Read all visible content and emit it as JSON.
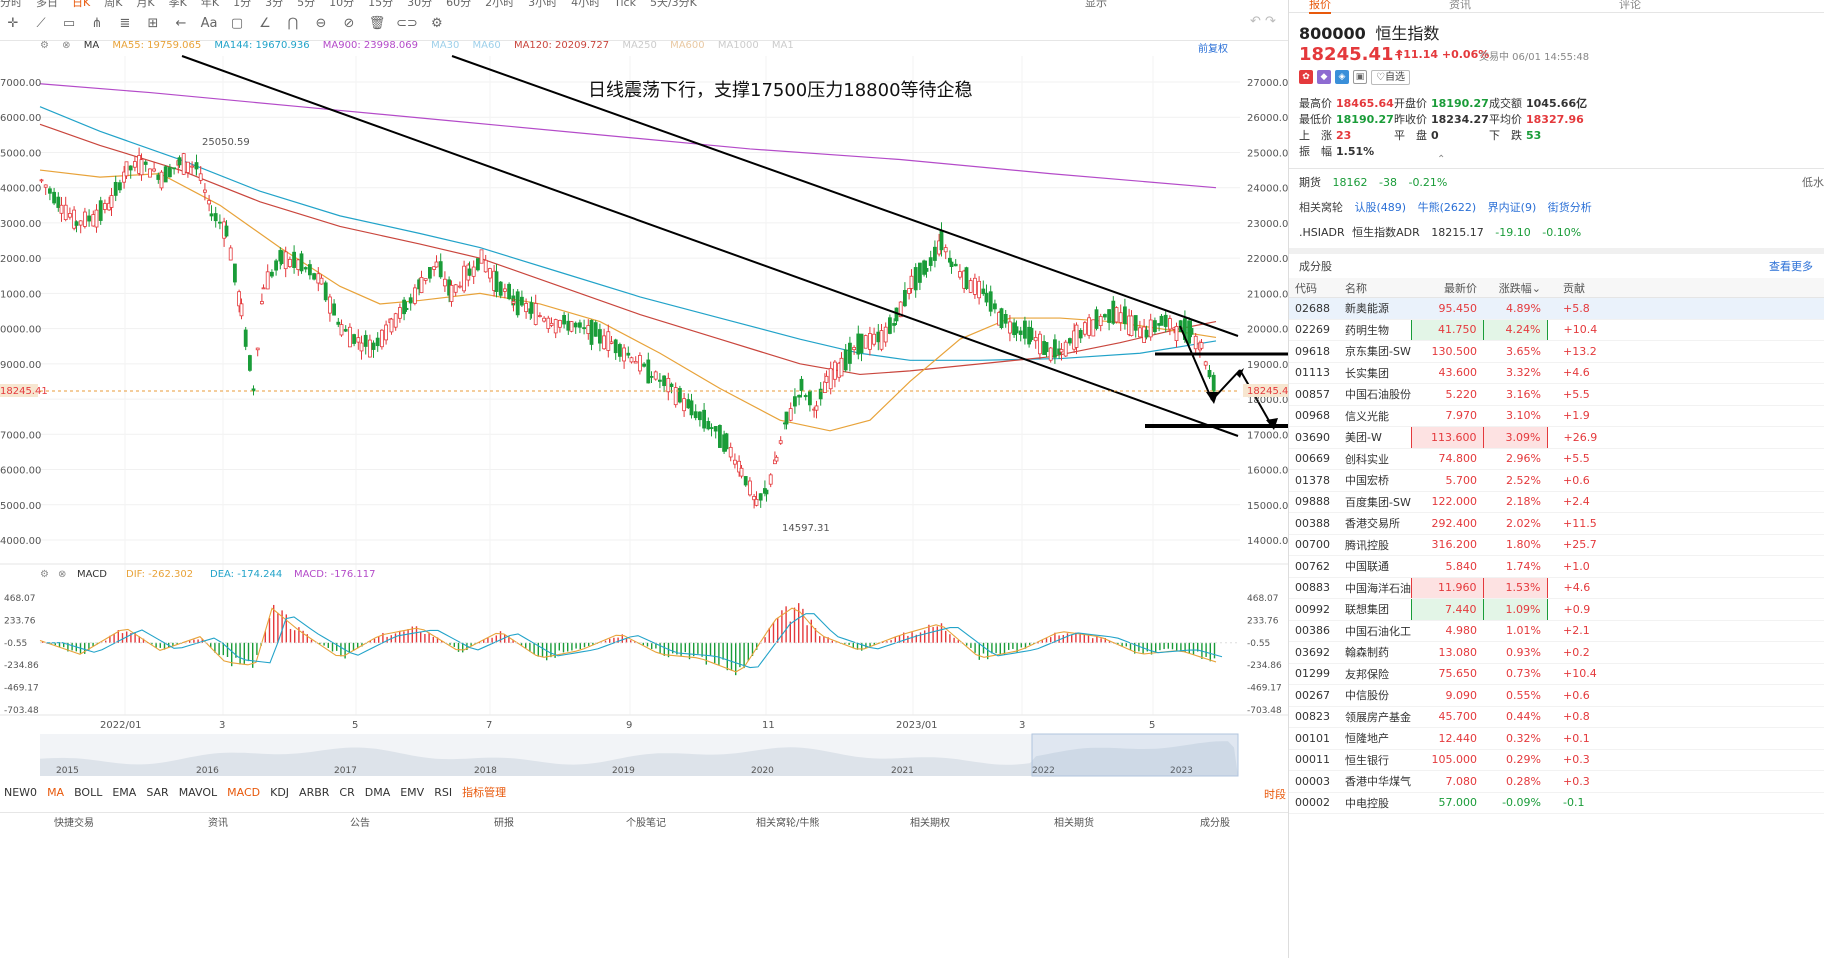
{
  "toolbar": {
    "periods": [
      "分时",
      "多日",
      "日K",
      "周K",
      "月K",
      "季K",
      "年K",
      "1分",
      "3分",
      "5分",
      "10分",
      "15分",
      "30分",
      "60分",
      "2小时",
      "3小时",
      "4小时",
      "Tick",
      "5天/3分K"
    ],
    "selected_period": "日K",
    "display_label": "显示"
  },
  "indicators": {
    "ma_label": "MA",
    "ma55": "MA55: 19759.065",
    "ma144": "MA144: 19670.936",
    "ma900": "MA900: 23998.069",
    "ma30": "MA30",
    "ma60": "MA60",
    "ma120": "MA120: 20209.727",
    "ma250": "MA250",
    "ma600": "MA600",
    "ma1000": "MA1000",
    "ma1": "MA1",
    "fq_label": "前复权",
    "colors": {
      "ma55": "#e8a33a",
      "ma144": "#22a3c9",
      "ma900": "#b44bc9",
      "ma120": "#c9463d"
    }
  },
  "chart": {
    "annotation": "日线震荡下行，支撑17500压力18800等待企稳",
    "high_label": "25050.59",
    "low_label": "14597.31",
    "current_price_label": "18245.41",
    "left_price_label": "18245.41",
    "y_ticks": [
      "27000.00",
      "26000.00",
      "25000.00",
      "24000.00",
      "23000.00",
      "22000.00",
      "21000.00",
      "20000.00",
      "19000.00",
      "18000.00",
      "17000.00",
      "16000.00",
      "15000.00",
      "14000.00"
    ],
    "left_ticks": [
      "7000.00",
      "6000.00",
      "5000.00",
      "4000.00",
      "3000.00",
      "2000.00",
      "1000.00",
      "0000.00",
      "9000.00",
      "7000.00",
      "6000.00",
      "5000.00",
      "4000.00"
    ],
    "x_labels": [
      "2022/01",
      "3",
      "5",
      "7",
      "9",
      "11",
      "2023/01",
      "3",
      "5"
    ],
    "overview_years": [
      "2015",
      "2016",
      "2017",
      "2018",
      "2019",
      "2020",
      "2021",
      "2022",
      "2023"
    ]
  },
  "macd": {
    "label": "MACD",
    "dif": "DIF: -262.302",
    "dea": "DEA: -174.244",
    "macd": "MACD: -176.117",
    "y_ticks": [
      "468.07",
      "233.76",
      "-0.55",
      "-234.86",
      "-469.17",
      "-703.48"
    ]
  },
  "bottom_tabs": [
    "NEW0",
    "MA",
    "BOLL",
    "EMA",
    "SAR",
    "MAVOL",
    "MACD",
    "KDJ",
    "ARBR",
    "CR",
    "DMA",
    "EMV",
    "RSI",
    "指标管理"
  ],
  "bottom_right": "时段",
  "bottom_nav": [
    "快捷交易",
    "资讯",
    "公告",
    "研报",
    "个股笔记",
    "相关窝轮/牛熊",
    "相关期权",
    "相关期货",
    "成分股"
  ],
  "quote": {
    "tabs": [
      "报价",
      "资讯",
      "评论"
    ],
    "code": "800000",
    "name": "恒生指数",
    "price": "18245.41",
    "change": "+11.14",
    "pct": "+0.06%",
    "status": "交易中 06/01 14:55:48",
    "fav_label": "♡自选",
    "stats": [
      [
        {
          "k": "最高价",
          "v": "18465.64",
          "c": "up"
        },
        {
          "k": "开盘价",
          "v": "18190.27",
          "c": "dn"
        },
        {
          "k": "成交额",
          "v": "1045.66亿",
          "c": "nc"
        }
      ],
      [
        {
          "k": "最低价",
          "v": "18190.27",
          "c": "dn"
        },
        {
          "k": "昨收价",
          "v": "18234.27",
          "c": "nc"
        },
        {
          "k": "平均价",
          "v": "18327.96",
          "c": "up"
        }
      ],
      [
        {
          "k": "上　涨",
          "v": "23",
          "c": "up"
        },
        {
          "k": "平　盘",
          "v": "0",
          "c": "nc"
        },
        {
          "k": "下　跌",
          "v": "53",
          "c": "dn"
        }
      ],
      [
        {
          "k": "振　幅",
          "v": "1.51%",
          "c": "nc"
        }
      ]
    ],
    "futures": {
      "label": "期货",
      "price": "18162",
      "chg": "-38",
      "pct": "-0.21%",
      "right": "低水"
    },
    "related": {
      "label": "相关窝轮",
      "links": [
        "认股(489)",
        "牛熊(2622)",
        "界内证(9)",
        "街货分析"
      ]
    },
    "adr": {
      "code": ".HSIADR",
      "name": "恒生指数ADR",
      "price": "18215.17",
      "chg": "-19.10",
      "pct": "-0.10%"
    }
  },
  "components": {
    "title": "成分股",
    "more": "查看更多",
    "headers": [
      "代码",
      "名称",
      "最新价",
      "涨跌幅",
      "贡献"
    ],
    "rows": [
      {
        "code": "02688",
        "name": "新奥能源",
        "price": "95.450",
        "pct": "4.89%",
        "contrib": "+5.8",
        "box": ""
      },
      {
        "code": "02269",
        "name": "药明生物",
        "price": "41.750",
        "pct": "4.24%",
        "contrib": "+10.4",
        "box": "dn"
      },
      {
        "code": "09618",
        "name": "京东集团-SW",
        "price": "130.500",
        "pct": "3.65%",
        "contrib": "+13.2",
        "box": ""
      },
      {
        "code": "01113",
        "name": "长实集团",
        "price": "43.600",
        "pct": "3.32%",
        "contrib": "+4.6",
        "box": ""
      },
      {
        "code": "00857",
        "name": "中国石油股份",
        "price": "5.220",
        "pct": "3.16%",
        "contrib": "+5.5",
        "box": ""
      },
      {
        "code": "00968",
        "name": "信义光能",
        "price": "7.970",
        "pct": "3.10%",
        "contrib": "+1.9",
        "box": ""
      },
      {
        "code": "03690",
        "name": "美团-W",
        "price": "113.600",
        "pct": "3.09%",
        "contrib": "+26.9",
        "box": "up"
      },
      {
        "code": "00669",
        "name": "创科实业",
        "price": "74.800",
        "pct": "2.96%",
        "contrib": "+5.5",
        "box": ""
      },
      {
        "code": "01378",
        "name": "中国宏桥",
        "price": "5.700",
        "pct": "2.52%",
        "contrib": "+0.6",
        "box": ""
      },
      {
        "code": "09888",
        "name": "百度集团-SW",
        "price": "122.000",
        "pct": "2.18%",
        "contrib": "+2.4",
        "box": ""
      },
      {
        "code": "00388",
        "name": "香港交易所",
        "price": "292.400",
        "pct": "2.02%",
        "contrib": "+11.5",
        "box": ""
      },
      {
        "code": "00700",
        "name": "腾讯控股",
        "price": "316.200",
        "pct": "1.80%",
        "contrib": "+25.7",
        "box": ""
      },
      {
        "code": "00762",
        "name": "中国联通",
        "price": "5.840",
        "pct": "1.74%",
        "contrib": "+1.0",
        "box": ""
      },
      {
        "code": "00883",
        "name": "中国海洋石油",
        "price": "11.960",
        "pct": "1.53%",
        "contrib": "+4.6",
        "box": "up"
      },
      {
        "code": "00992",
        "name": "联想集团",
        "price": "7.440",
        "pct": "1.09%",
        "contrib": "+0.9",
        "box": "dn"
      },
      {
        "code": "00386",
        "name": "中国石油化工",
        "price": "4.980",
        "pct": "1.01%",
        "contrib": "+2.1",
        "box": ""
      },
      {
        "code": "03692",
        "name": "翰森制药",
        "price": "13.080",
        "pct": "0.93%",
        "contrib": "+0.2",
        "box": ""
      },
      {
        "code": "01299",
        "name": "友邦保险",
        "price": "75.650",
        "pct": "0.73%",
        "contrib": "+10.4",
        "box": ""
      },
      {
        "code": "00267",
        "name": "中信股份",
        "price": "9.090",
        "pct": "0.55%",
        "contrib": "+0.6",
        "box": ""
      },
      {
        "code": "00823",
        "name": "领展房产基金",
        "price": "45.700",
        "pct": "0.44%",
        "contrib": "+0.8",
        "box": ""
      },
      {
        "code": "00101",
        "name": "恒隆地产",
        "price": "12.440",
        "pct": "0.32%",
        "contrib": "+0.1",
        "box": ""
      },
      {
        "code": "00011",
        "name": "恒生银行",
        "price": "105.000",
        "pct": "0.29%",
        "contrib": "+0.3",
        "box": ""
      },
      {
        "code": "00003",
        "name": "香港中华煤气",
        "price": "7.080",
        "pct": "0.28%",
        "contrib": "+0.3",
        "box": ""
      },
      {
        "code": "00002",
        "name": "中电控股",
        "price": "57.000",
        "pct": "-0.09%",
        "contrib": "-0.1",
        "box": ""
      }
    ]
  }
}
